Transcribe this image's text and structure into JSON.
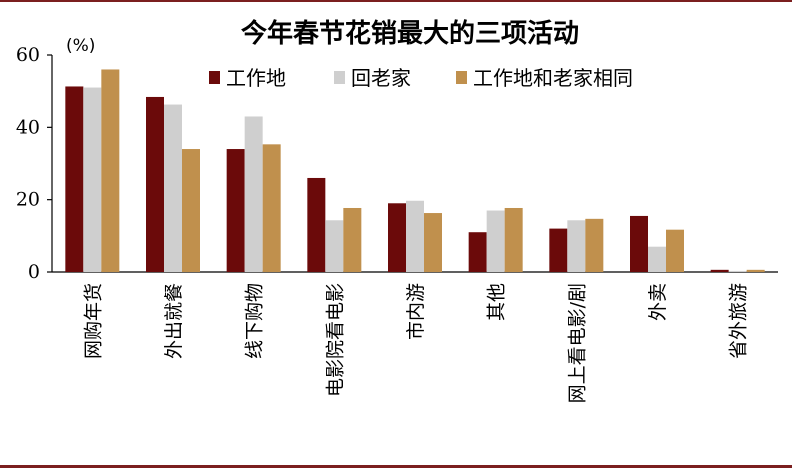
{
  "chart_data": {
    "type": "bar",
    "title": "今年春节花销最大的三项活动",
    "unit_label": "(%)",
    "ylim": [
      0,
      60
    ],
    "yticks": [
      0,
      20,
      40,
      60
    ],
    "legend_position": "top-right",
    "categories": [
      "网购年货",
      "外出就餐",
      "线下购物",
      "电影院看电影",
      "市内游",
      "其他",
      "网上看电影/剧",
      "外卖",
      "省外旅游"
    ],
    "series": [
      {
        "name": "工作地",
        "color": "#6b0a0a",
        "values": [
          51.3,
          48.4,
          34.0,
          26.0,
          19.0,
          11.0,
          12.0,
          15.5,
          0.6
        ]
      },
      {
        "name": "回老家",
        "color": "#cfcfcf",
        "values": [
          51.0,
          46.3,
          43.0,
          14.3,
          19.7,
          17.0,
          14.3,
          7.0,
          0.3
        ]
      },
      {
        "name": "工作地和老家相同",
        "color": "#c0904d",
        "values": [
          56.0,
          34.0,
          35.3,
          17.7,
          16.3,
          17.7,
          14.7,
          11.7,
          0.6
        ]
      }
    ]
  }
}
